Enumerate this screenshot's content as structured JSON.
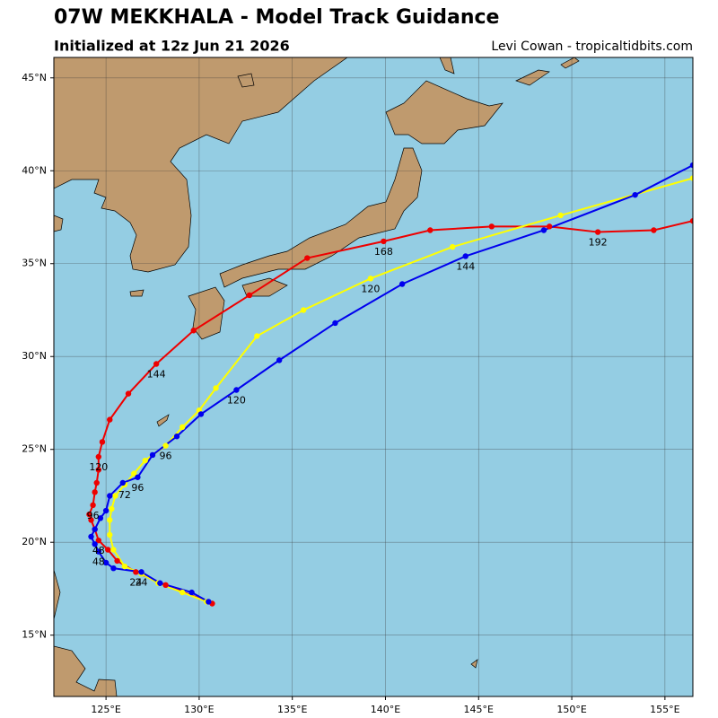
{
  "chart_data": {
    "type": "line",
    "title": "07W MEKKHALA - Model Track Guidance",
    "subtitle": "Initialized at 12z Jun 21 2026",
    "credit": "Levi Cowan - tropicaltidbits.com",
    "xlim": [
      122.2,
      156.5
    ],
    "ylim": [
      11.7,
      46.1
    ],
    "xticks": [
      {
        "value": 125,
        "label": "125°E"
      },
      {
        "value": 130,
        "label": "130°E"
      },
      {
        "value": 135,
        "label": "135°E"
      },
      {
        "value": 140,
        "label": "140°E"
      },
      {
        "value": 145,
        "label": "145°E"
      },
      {
        "value": 150,
        "label": "150°E"
      },
      {
        "value": 155,
        "label": "155°E"
      }
    ],
    "yticks": [
      {
        "value": 15,
        "label": "15°N"
      },
      {
        "value": 20,
        "label": "20°N"
      },
      {
        "value": 25,
        "label": "25°N"
      },
      {
        "value": 30,
        "label": "30°N"
      },
      {
        "value": 35,
        "label": "35°N"
      },
      {
        "value": 40,
        "label": "40°N"
      },
      {
        "value": 45,
        "label": "45°N"
      }
    ],
    "grid": true,
    "series": [
      {
        "color": "#ee0000",
        "x": [
          130.7,
          128.2,
          126.6,
          125.6,
          125.1,
          124.6,
          124.4,
          124.2,
          124.1,
          124.3,
          124.4,
          124.5,
          124.6,
          124.6,
          124.8,
          125.2,
          126.2,
          127.7,
          129.7,
          132.7,
          135.8,
          139.9,
          142.4,
          145.7,
          148.8,
          151.4,
          154.4,
          156.5
        ],
        "values": [
          16.7,
          17.7,
          18.4,
          19.0,
          19.6,
          20.1,
          20.7,
          21.2,
          21.5,
          22.0,
          22.7,
          23.2,
          23.9,
          24.6,
          25.4,
          26.6,
          28.0,
          29.6,
          31.4,
          33.3,
          35.3,
          36.2,
          36.8,
          37.0,
          37.0,
          36.7,
          36.8,
          37.3
        ],
        "labels": [
          null,
          null,
          "24",
          null,
          null,
          "48",
          null,
          null,
          null,
          "96",
          null,
          null,
          null,
          "120",
          null,
          null,
          null,
          "144",
          null,
          null,
          null,
          "168",
          null,
          null,
          null,
          "192",
          null,
          null
        ]
      },
      {
        "color": "#ffff00",
        "x": [
          130.4,
          129.1,
          127.8,
          126.9,
          126.0,
          125.4,
          125.2,
          125.2,
          125.3,
          125.5,
          126.0,
          126.5,
          127.1,
          128.2,
          129.1,
          130.0,
          130.9,
          133.1,
          135.6,
          139.2,
          143.6,
          149.4,
          156.5
        ],
        "values": [
          16.8,
          17.3,
          17.8,
          18.3,
          18.7,
          19.6,
          20.4,
          21.2,
          21.8,
          22.5,
          23.1,
          23.7,
          24.4,
          25.2,
          26.2,
          27.1,
          28.3,
          31.1,
          32.5,
          34.2,
          35.9,
          37.6,
          39.6
        ],
        "labels": [
          null,
          null,
          null,
          null,
          null,
          null,
          null,
          null,
          null,
          null,
          "72",
          null,
          null,
          "96",
          null,
          null,
          null,
          null,
          null,
          "120",
          null,
          null,
          null
        ]
      },
      {
        "color": "#0000ee",
        "x": [
          130.5,
          129.6,
          127.9,
          126.9,
          125.4,
          125.0,
          124.6,
          124.4,
          124.2,
          124.4,
          124.7,
          125.0,
          125.2,
          125.9,
          126.7,
          127.5,
          128.8,
          130.1,
          132.0,
          134.3,
          137.3,
          140.9,
          144.3,
          148.5,
          153.4,
          156.5
        ],
        "values": [
          16.8,
          17.3,
          17.8,
          18.4,
          18.6,
          18.9,
          19.5,
          19.9,
          20.3,
          20.7,
          21.3,
          21.7,
          22.5,
          23.2,
          23.5,
          24.7,
          25.7,
          26.9,
          28.2,
          29.8,
          31.8,
          33.9,
          35.4,
          36.8,
          38.7,
          40.3
        ],
        "labels": [
          null,
          null,
          null,
          "24",
          null,
          null,
          "48",
          null,
          null,
          null,
          null,
          null,
          null,
          null,
          "96",
          null,
          null,
          null,
          "120",
          null,
          null,
          null,
          "144",
          null,
          null,
          null
        ]
      }
    ]
  }
}
